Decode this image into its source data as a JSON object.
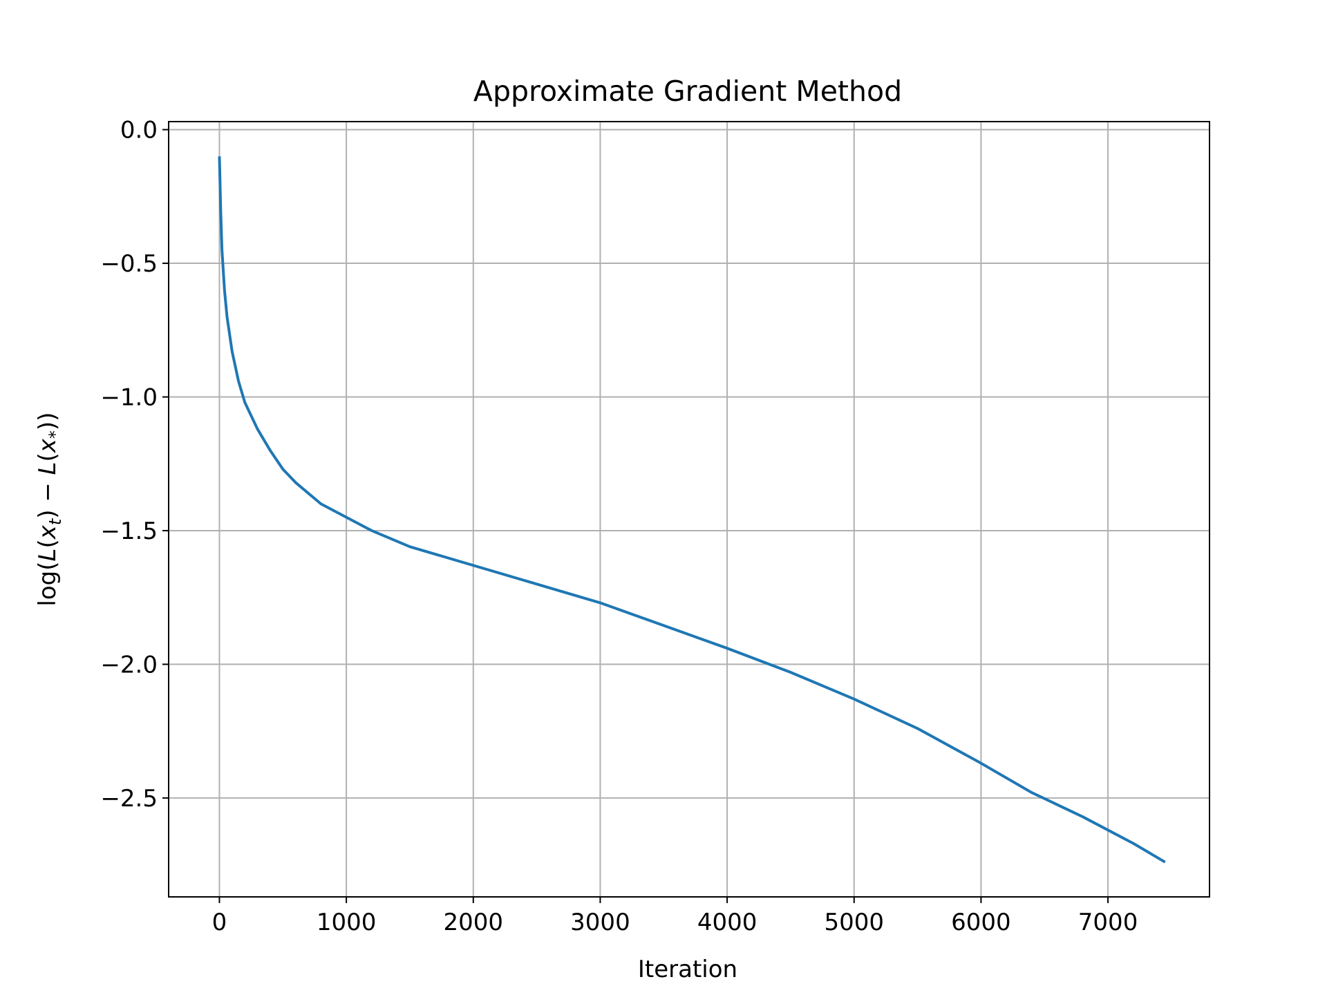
{
  "chart_data": {
    "type": "line",
    "title": "Approximate Gradient Method",
    "xlabel": "Iteration",
    "ylabel_parts": {
      "pre": "log(",
      "L1": "L",
      "open1": "(",
      "x1": "x",
      "sub1": "t",
      "close1": ")",
      "minus": " − ",
      "L2": "L",
      "open2": "(",
      "x2": "x",
      "sub2": "*",
      "close2": "))"
    },
    "xlim": [
      -400,
      7800
    ],
    "ylim": [
      -2.87,
      0.03
    ],
    "xticks": [
      0,
      1000,
      2000,
      3000,
      4000,
      5000,
      6000,
      7000
    ],
    "xtick_labels": [
      "0",
      "1000",
      "2000",
      "3000",
      "4000",
      "5000",
      "6000",
      "7000"
    ],
    "yticks": [
      0.0,
      -0.5,
      -1.0,
      -1.5,
      -2.0,
      -2.5
    ],
    "ytick_labels": [
      "0.0",
      "−0.5",
      "−1.0",
      "−1.5",
      "−2.0",
      "−2.5"
    ],
    "grid": true,
    "series": [
      {
        "color": "#1f77b4",
        "x": [
          0,
          10,
          20,
          40,
          60,
          100,
          150,
          200,
          300,
          400,
          500,
          600,
          800,
          1000,
          1200,
          1500,
          2000,
          2500,
          3000,
          3500,
          4000,
          4500,
          5000,
          5500,
          6000,
          6400,
          6800,
          7200,
          7450
        ],
        "y": [
          -0.1,
          -0.3,
          -0.45,
          -0.6,
          -0.7,
          -0.83,
          -0.94,
          -1.02,
          -1.12,
          -1.2,
          -1.27,
          -1.32,
          -1.4,
          -1.45,
          -1.5,
          -1.56,
          -1.63,
          -1.7,
          -1.77,
          -1.855,
          -1.94,
          -2.03,
          -2.13,
          -2.24,
          -2.37,
          -2.48,
          -2.57,
          -2.67,
          -2.74
        ]
      }
    ]
  }
}
